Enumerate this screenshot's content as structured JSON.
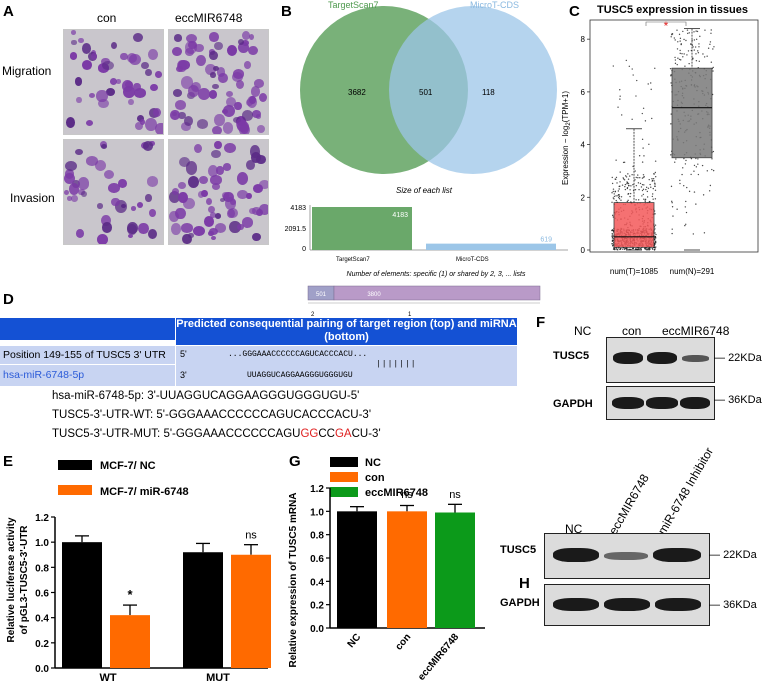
{
  "panelA": {
    "label": "A",
    "cols": [
      "con",
      "eccMIR6748"
    ],
    "rows": [
      "Migration",
      "Invasion"
    ]
  },
  "panelB": {
    "label": "B",
    "venn_left": "TargetScan7",
    "venn_right": "MicroT-CDS",
    "counts": [
      "3682",
      "501",
      "118"
    ],
    "size_title": "Size of each list",
    "size_ticks": [
      "4183",
      "2091.5",
      "0"
    ],
    "bars": [
      {
        "name": "TargetScan7",
        "value": 4183,
        "label": "4183"
      },
      {
        "name": "MicroT-CDS",
        "value": 619,
        "label": "619"
      }
    ],
    "elements_title": "Number of elements: specific (1) or shared by 2, 3, ... lists",
    "elements": [
      {
        "value": "501",
        "ticklabel": "2",
        "count": 501
      },
      {
        "value": "3800",
        "ticklabel": "1",
        "count": 3800
      }
    ]
  },
  "panelC": {
    "label": "C",
    "title": "TUSC5 expression in tissues",
    "ylabel": "Expression − log",
    "ylabel_sub": "2",
    "ylabel_tail": "(TPM+1)",
    "yticks": [
      "0",
      "2",
      "4",
      "6",
      "8"
    ],
    "star": "*",
    "xlabels": [
      "num(T)=1085",
      "num(N)=291"
    ],
    "colors": {
      "tumor": "#f4595a",
      "normal": "#7a7a7a"
    }
  },
  "panelD": {
    "label": "D",
    "header": "Predicted consequential pairing of target region (top) and miRNA (bottom)",
    "row1_label": "Position 149-155 of TUSC5 3' UTR",
    "row1_end": "5'",
    "row1_seq": "...GGGAAACCCCCCAGUCACCCACU...",
    "pairs": "|||||||",
    "row2_label": "hsa-miR-6748-5p",
    "row2_end": "3'",
    "row2_seq": "UUAGGUCAGGAAGGGUGGGUGU",
    "seq_lines": [
      "hsa-miR-6748-5p: 3'-UUAGGUCAGGAAGGGUGGGUGU-5'",
      "TUSC5-3'-UTR-WT: 5'-GGGAAACCCCCCAGUCACCCACU-3'"
    ],
    "mut_parts": [
      "TUSC5-3'-UTR-MUT: 5'-GGGAAACCCCCCAGU",
      "GG",
      "CC",
      "GA",
      "CU-3'"
    ]
  },
  "panelE": {
    "label": "E",
    "legend": [
      "MCF-7/ NC",
      "MCF-7/ miR-6748"
    ],
    "ylabel": "Relative luciferase activity of pGL3-TUSC5-3'-UTR",
    "yticks": [
      "1.2",
      "1.0",
      "0.8",
      "0.6",
      "0.4",
      "0.2",
      "0.0"
    ],
    "groups": [
      "WT",
      "MUT"
    ],
    "sig": [
      "*",
      "ns"
    ]
  },
  "panelF": {
    "label": "F",
    "lanes": [
      "NC",
      "con",
      "eccMIR6748"
    ],
    "rows": [
      "TUSC5",
      "GAPDH"
    ],
    "sizes": [
      "22KDa",
      "36KDa"
    ]
  },
  "panelG": {
    "label": "G",
    "legend": [
      "NC",
      "con",
      "eccMIR6748"
    ],
    "ylabel": "Relative expression of TUSC5 mRNA",
    "yticks": [
      "1.2",
      "1.0",
      "0.8",
      "0.6",
      "0.4",
      "0.2",
      "0.0"
    ],
    "categories": [
      "NC",
      "con",
      "eccMIR6748"
    ],
    "sig": [
      "ns",
      "ns"
    ]
  },
  "panelH": {
    "label": "H",
    "lanes": [
      "NC",
      "eccMIR6748",
      "miR-6748 Inhibitor"
    ],
    "rows": [
      "TUSC5",
      "GAPDH"
    ],
    "sizes": [
      "22KDa",
      "36KDa"
    ]
  },
  "chart_data": [
    {
      "type": "bar",
      "panel": "B",
      "title": "Size of each list",
      "categories": [
        "TargetScan7",
        "MicroT-CDS"
      ],
      "values": [
        4183,
        619
      ],
      "ylim": [
        0,
        4183
      ]
    },
    {
      "type": "box",
      "panel": "C",
      "title": "TUSC5 expression in tissues",
      "categories": [
        "num(T)=1085",
        "num(N)=291"
      ],
      "median": [
        0.5,
        5.4
      ],
      "q1": [
        0.1,
        3.5
      ],
      "q3": [
        1.8,
        6.9
      ],
      "ylim": [
        0,
        8.5
      ]
    },
    {
      "type": "bar",
      "panel": "E",
      "categories": [
        "WT",
        "MUT"
      ],
      "series": [
        {
          "name": "MCF-7/ NC",
          "values": [
            1.0,
            0.92
          ],
          "err": [
            0.05,
            0.07
          ]
        },
        {
          "name": "MCF-7/ miR-6748",
          "values": [
            0.42,
            0.9
          ],
          "err": [
            0.08,
            0.08
          ]
        }
      ],
      "ylim": [
        0,
        1.2
      ]
    },
    {
      "type": "bar",
      "panel": "G",
      "categories": [
        "NC",
        "con",
        "eccMIR6748"
      ],
      "values": [
        1.0,
        1.0,
        0.99
      ],
      "err": [
        0.04,
        0.05,
        0.07
      ],
      "ylim": [
        0,
        1.2
      ]
    }
  ]
}
